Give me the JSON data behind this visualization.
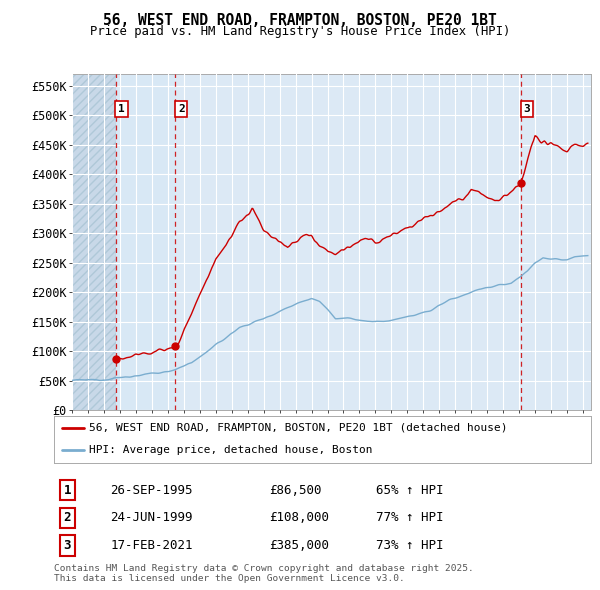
{
  "title": "56, WEST END ROAD, FRAMPTON, BOSTON, PE20 1BT",
  "subtitle": "Price paid vs. HM Land Registry's House Price Index (HPI)",
  "ylim": [
    0,
    570000
  ],
  "yticks": [
    0,
    50000,
    100000,
    150000,
    200000,
    250000,
    300000,
    350000,
    400000,
    450000,
    500000,
    550000
  ],
  "ytick_labels": [
    "£0",
    "£50K",
    "£100K",
    "£150K",
    "£200K",
    "£250K",
    "£300K",
    "£350K",
    "£400K",
    "£450K",
    "£500K",
    "£550K"
  ],
  "xmin": 1993.0,
  "xmax": 2025.5,
  "background_color": "#ffffff",
  "plot_bg_color": "#dce9f5",
  "grid_color": "#ffffff",
  "red_line_color": "#cc0000",
  "blue_line_color": "#7aadcf",
  "sale_points": [
    {
      "year": 1995.74,
      "price": 86500,
      "label": "1"
    },
    {
      "year": 1999.48,
      "price": 108000,
      "label": "2"
    },
    {
      "year": 2021.13,
      "price": 385000,
      "label": "3"
    }
  ],
  "vline_color": "#cc0000",
  "legend_entries": [
    "56, WEST END ROAD, FRAMPTON, BOSTON, PE20 1BT (detached house)",
    "HPI: Average price, detached house, Boston"
  ],
  "table_data": [
    {
      "num": "1",
      "date": "26-SEP-1995",
      "price": "£86,500",
      "change": "65% ↑ HPI"
    },
    {
      "num": "2",
      "date": "24-JUN-1999",
      "price": "£108,000",
      "change": "77% ↑ HPI"
    },
    {
      "num": "3",
      "date": "17-FEB-2021",
      "price": "£385,000",
      "change": "73% ↑ HPI"
    }
  ],
  "footnote": "Contains HM Land Registry data © Crown copyright and database right 2025.\nThis data is licensed under the Open Government Licence v3.0."
}
